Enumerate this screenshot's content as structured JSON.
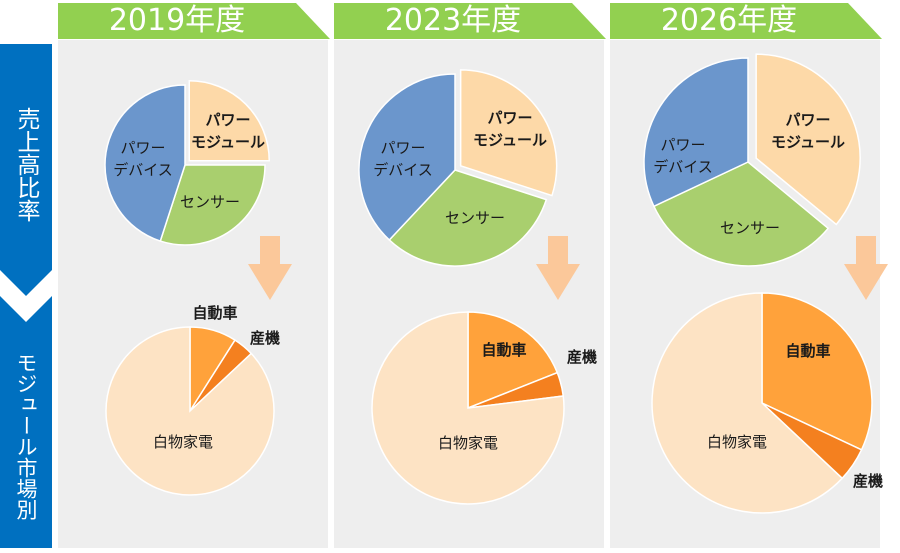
{
  "side_labels": {
    "top": "売上高比率",
    "bottom": "モジュール市場別"
  },
  "colors": {
    "panel": "#eeeeee",
    "year_tab": "#92d050",
    "side_bar": "#0070c0",
    "arrow": "#fbc89a",
    "power_device": "#6b96cc",
    "power_module": "#fdd9a8",
    "sensor": "#a9cf6e",
    "automotive": "#ffa23b",
    "industrial": "#f4801f",
    "appliance": "#fde3c4"
  },
  "chart_data": [
    {
      "type": "pie",
      "year": "2019年度",
      "title": "売上高比率",
      "slices": [
        {
          "label": "パワー\nモジュール",
          "value": 25,
          "color": "#fdd9a8",
          "bold": true,
          "exploded": true
        },
        {
          "label": "センサー",
          "value": 30,
          "color": "#a9cf6e",
          "bold": false,
          "exploded": false
        },
        {
          "label": "パワー\nデバイス",
          "value": 45,
          "color": "#6b96cc",
          "bold": false,
          "exploded": false
        }
      ]
    },
    {
      "type": "pie",
      "year": "2019年度",
      "title": "モジュール市場別",
      "slices": [
        {
          "label": "自動車",
          "value": 9,
          "color": "#ffa23b",
          "bold": true,
          "exploded": false
        },
        {
          "label": "産機",
          "value": 4,
          "color": "#f4801f",
          "bold": true,
          "exploded": false
        },
        {
          "label": "白物家電",
          "value": 87,
          "color": "#fde3c4",
          "bold": false,
          "exploded": false
        }
      ]
    },
    {
      "type": "pie",
      "year": "2023年度",
      "title": "売上高比率",
      "slices": [
        {
          "label": "パワー\nモジュール",
          "value": 30,
          "color": "#fdd9a8",
          "bold": true,
          "exploded": true
        },
        {
          "label": "センサー",
          "value": 32,
          "color": "#a9cf6e",
          "bold": false,
          "exploded": false
        },
        {
          "label": "パワー\nデバイス",
          "value": 38,
          "color": "#6b96cc",
          "bold": false,
          "exploded": false
        }
      ]
    },
    {
      "type": "pie",
      "year": "2023年度",
      "title": "モジュール市場別",
      "slices": [
        {
          "label": "自動車",
          "value": 19,
          "color": "#ffa23b",
          "bold": true,
          "exploded": false
        },
        {
          "label": "産機",
          "value": 4,
          "color": "#f4801f",
          "bold": true,
          "exploded": false
        },
        {
          "label": "白物家電",
          "value": 77,
          "color": "#fde3c4",
          "bold": false,
          "exploded": false
        }
      ]
    },
    {
      "type": "pie",
      "year": "2026年度",
      "title": "売上高比率",
      "slices": [
        {
          "label": "パワー\nモジュール",
          "value": 36,
          "color": "#fdd9a8",
          "bold": true,
          "exploded": true
        },
        {
          "label": "センサー",
          "value": 32,
          "color": "#a9cf6e",
          "bold": false,
          "exploded": false
        },
        {
          "label": "パワー\nデバイス",
          "value": 32,
          "color": "#6b96cc",
          "bold": false,
          "exploded": false
        }
      ]
    },
    {
      "type": "pie",
      "year": "2026年度",
      "title": "モジュール市場別",
      "slices": [
        {
          "label": "自動車",
          "value": 32,
          "color": "#ffa23b",
          "bold": true,
          "exploded": false
        },
        {
          "label": "産機",
          "value": 5,
          "color": "#f4801f",
          "bold": true,
          "exploded": false
        },
        {
          "label": "白物家電",
          "value": 63,
          "color": "#fde3c4",
          "bold": false,
          "exploded": false
        }
      ]
    }
  ]
}
